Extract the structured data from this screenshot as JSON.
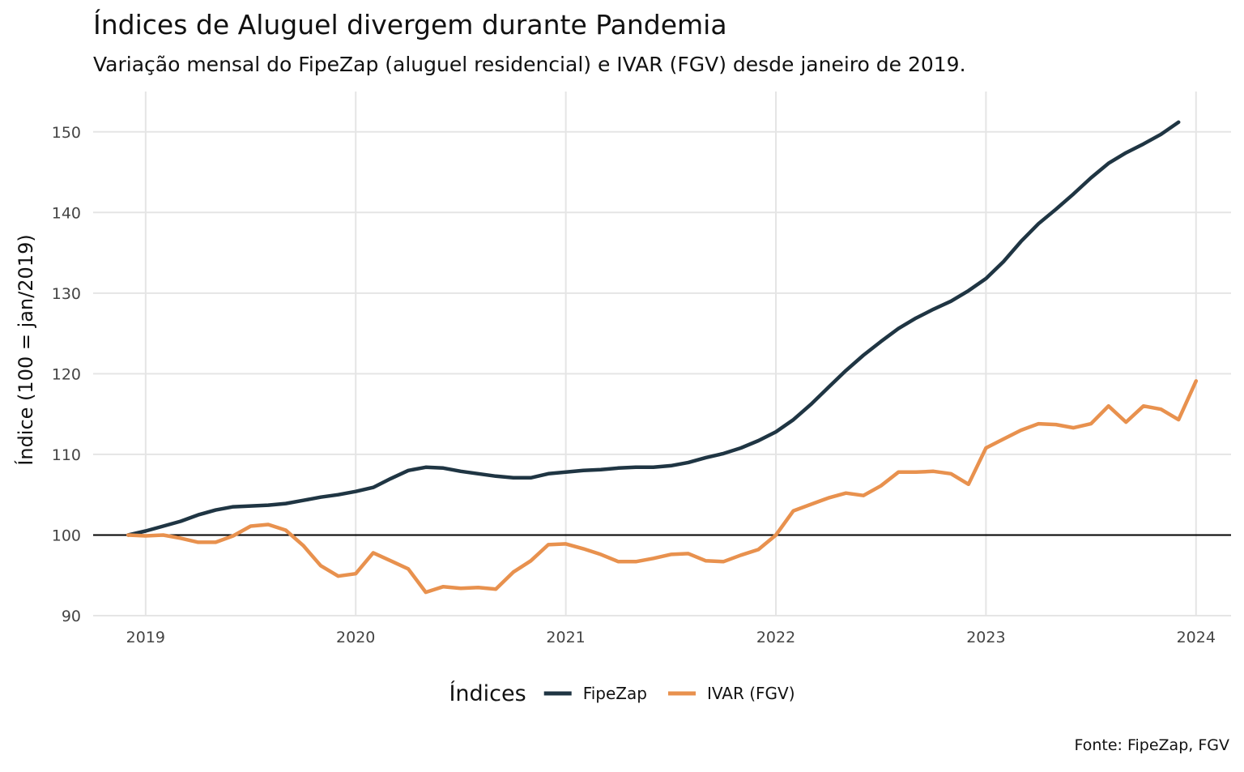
{
  "chart_data": {
    "type": "line",
    "title": "Índices de Aluguel divergem durante Pandemia",
    "subtitle": "Variação mensal do FipeZap (aluguel residencial) e IVAR (FGV) desde janeiro de 2019.",
    "xlabel": "",
    "ylabel": "Índice (100 = jan/2019)",
    "caption": "Fonte: FipeZap, FGV",
    "legend_title": "Índices",
    "legend_position": "bottom",
    "grid": true,
    "reference_line": 100,
    "xlim": [
      "2018-10",
      "2024-03"
    ],
    "ylim": [
      90,
      155
    ],
    "x_ticks": [
      "2019",
      "2020",
      "2021",
      "2022",
      "2023",
      "2024"
    ],
    "y_ticks": [
      90,
      100,
      110,
      120,
      130,
      140,
      150
    ],
    "series": [
      {
        "name": "FipeZap",
        "color": "#1f3543",
        "start": "2018-12",
        "values": [
          100.0,
          100.5,
          101.1,
          101.7,
          102.5,
          103.1,
          103.5,
          103.6,
          103.7,
          103.9,
          104.3,
          104.7,
          105.0,
          105.4,
          105.9,
          107.0,
          108.0,
          108.4,
          108.3,
          107.9,
          107.6,
          107.3,
          107.1,
          107.1,
          107.6,
          107.8,
          108.0,
          108.1,
          108.3,
          108.4,
          108.4,
          108.6,
          109.0,
          109.6,
          110.1,
          110.8,
          111.7,
          112.8,
          114.3,
          116.2,
          118.3,
          120.4,
          122.3,
          124.0,
          125.6,
          126.9,
          128.0,
          129.0,
          130.3,
          131.8,
          133.9,
          136.4,
          138.6,
          140.4,
          142.3,
          144.3,
          146.1,
          147.4,
          148.5,
          149.7,
          151.2
        ]
      },
      {
        "name": "IVAR (FGV)",
        "color": "#e8914e",
        "start": "2018-12",
        "values": [
          100.0,
          99.9,
          100.0,
          99.6,
          99.1,
          99.1,
          99.9,
          101.1,
          101.3,
          100.6,
          98.7,
          96.2,
          94.9,
          95.2,
          97.8,
          96.8,
          95.8,
          92.9,
          93.6,
          93.4,
          93.5,
          93.3,
          95.4,
          96.8,
          98.8,
          98.9,
          98.3,
          97.6,
          96.7,
          96.7,
          97.1,
          97.6,
          97.7,
          96.8,
          96.7,
          97.5,
          98.2,
          100.0,
          103.0,
          103.8,
          104.6,
          105.2,
          104.9,
          106.1,
          107.8,
          107.8,
          107.9,
          107.6,
          106.3,
          110.8,
          111.9,
          113.0,
          113.8,
          113.7,
          113.3,
          113.8,
          116.0,
          114.0,
          116.0,
          115.6,
          114.3,
          119.1
        ]
      }
    ]
  }
}
